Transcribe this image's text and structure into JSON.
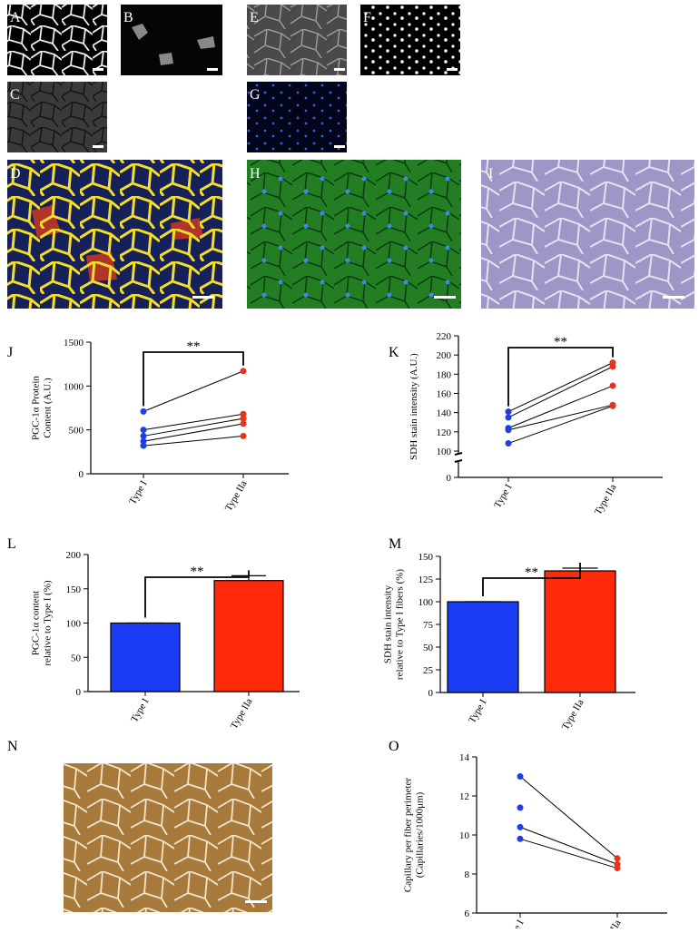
{
  "panels": [
    "A",
    "B",
    "C",
    "D",
    "E",
    "F",
    "G",
    "H",
    "I",
    "N"
  ],
  "chart_data": [
    {
      "type": "line",
      "panel": "J",
      "ylabel": [
        "PGC-1α Protein",
        "Content (A.U.)"
      ],
      "categories": [
        "Type I",
        "Type IIa"
      ],
      "series": [
        {
          "values": [
            710,
            1170
          ]
        },
        {
          "values": [
            500,
            680
          ]
        },
        {
          "values": [
            430,
            630
          ]
        },
        {
          "values": [
            370,
            570
          ]
        },
        {
          "values": [
            320,
            430
          ]
        }
      ],
      "point_colors": [
        "#1f3fe0",
        "#e8321e"
      ],
      "line_color": "#000000",
      "ylim": [
        0,
        1500
      ],
      "yticks": [
        0,
        500,
        1000,
        1500
      ],
      "annotation": "**"
    },
    {
      "type": "line",
      "panel": "K",
      "ylabel": [
        "SDH stain intensity (A.U.)"
      ],
      "categories": [
        "Type I",
        "Type IIa"
      ],
      "series": [
        {
          "values": [
            141,
            192
          ]
        },
        {
          "values": [
            135,
            188
          ]
        },
        {
          "values": [
            124,
            168
          ]
        },
        {
          "values": [
            122,
            148
          ]
        },
        {
          "values": [
            108,
            147
          ]
        }
      ],
      "point_colors": [
        "#1f3fe0",
        "#e8321e"
      ],
      "line_color": "#000000",
      "ylim": [
        100,
        220
      ],
      "yticks": [
        0,
        100,
        120,
        140,
        160,
        180,
        200,
        220
      ],
      "axis_break": true,
      "annotation": "**"
    },
    {
      "type": "bar",
      "panel": "L",
      "ylabel": [
        "PGC-1α  content",
        "relative to Type I (%)"
      ],
      "categories": [
        "Type I",
        "Type IIa"
      ],
      "values": [
        100,
        162
      ],
      "errors": [
        0,
        7
      ],
      "colors": [
        "#1a3cf5",
        "#ff2a0a"
      ],
      "ylim": [
        0,
        200
      ],
      "yticks": [
        0,
        50,
        100,
        150,
        200
      ],
      "annotation": "**"
    },
    {
      "type": "bar",
      "panel": "M",
      "ylabel": [
        "SDH stain intensity",
        "relative to Type I fibers (%)"
      ],
      "categories": [
        "Type I",
        "Type IIa"
      ],
      "values": [
        100,
        134
      ],
      "errors": [
        0,
        3
      ],
      "colors": [
        "#1a3cf5",
        "#ff2a0a"
      ],
      "ylim": [
        0,
        150
      ],
      "yticks": [
        0,
        25,
        50,
        75,
        100,
        125,
        150
      ],
      "annotation": "**"
    },
    {
      "type": "line",
      "panel": "O",
      "ylabel": [
        "Capillary per fiber perimeter",
        "(Capillaries/1000μm)"
      ],
      "categories": [
        "Type I",
        "Type IIa"
      ],
      "series": [
        {
          "values": [
            13.0,
            8.8
          ]
        },
        {
          "values": [
            10.4,
            8.5
          ]
        },
        {
          "values": [
            9.8,
            8.3
          ]
        },
        {
          "values": [
            11.4,
            null
          ]
        }
      ],
      "point_colors": [
        "#1f3fe0",
        "#e8321e"
      ],
      "line_color": "#000000",
      "ylim": [
        6,
        14
      ],
      "yticks": [
        6,
        8,
        10,
        12,
        14
      ]
    }
  ]
}
